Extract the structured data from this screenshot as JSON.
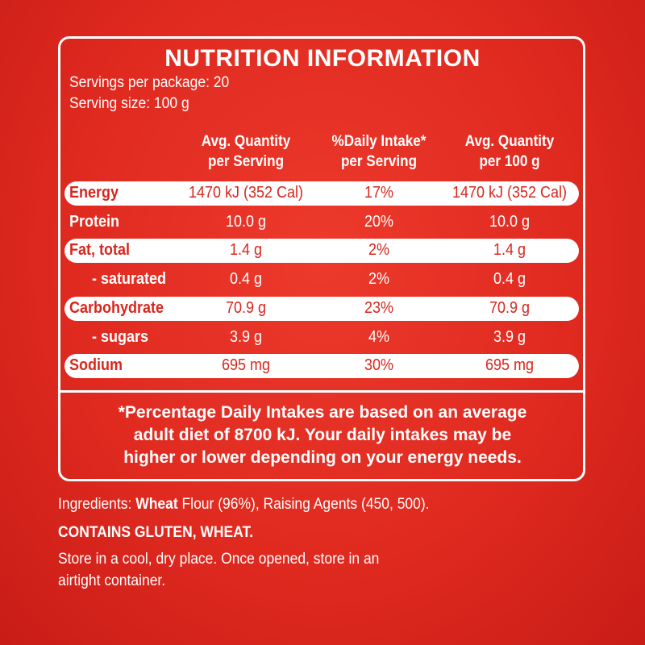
{
  "header": {
    "title": "NUTRITION INFORMATION",
    "servings_per_package": "Servings per package: 20",
    "serving_size": "Serving size: 100 g"
  },
  "table": {
    "columns": [
      [
        "Avg. Quantity",
        "per Serving"
      ],
      [
        "%Daily Intake*",
        "per Serving"
      ],
      [
        "Avg. Quantity",
        "per 100 g"
      ]
    ],
    "rows": [
      [
        "Energy",
        "1470 kJ (352 Cal)",
        "17%",
        "1470 kJ (352 Cal)"
      ],
      [
        "Protein",
        "10.0 g",
        "20%",
        "10.0 g"
      ],
      [
        "Fat, total",
        "1.4 g",
        "2%",
        "1.4 g"
      ],
      [
        "- saturated",
        "0.4 g",
        "2%",
        "0.4 g"
      ],
      [
        "Carbohydrate",
        "70.9 g",
        "23%",
        "70.9 g"
      ],
      [
        "- sugars",
        "3.9 g",
        "4%",
        "3.9 g"
      ],
      [
        "Sodium",
        "695 mg",
        "30%",
        "695 mg"
      ]
    ]
  },
  "footnote": [
    "*Percentage Daily Intakes are based on an average",
    "adult diet of 8700 kJ. Your daily intakes may be",
    "higher or lower depending on your energy needs."
  ],
  "ingredients": [
    "Ingredients: ",
    "Wheat",
    " Flour (96%), Raising Agents (450, 500)."
  ],
  "allergens": "CONTAINS GLUTEN, WHEAT.",
  "storage": [
    "Store in a cool, dry place. Once opened, store in an",
    "airtight container."
  ]
}
